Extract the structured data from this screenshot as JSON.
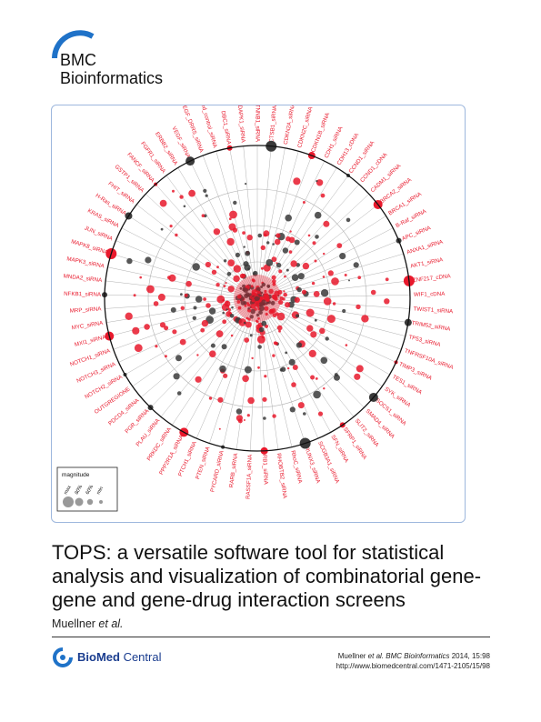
{
  "journal": {
    "line1": "BMC",
    "line2": "Bioinformatics",
    "arc_color": "#1f72c8"
  },
  "figure": {
    "labels_left": [
      "NOTCH1_siRNA",
      "MXI1_siRNA",
      "MYC_siRNA",
      "MRP_siRNA",
      "NFKB1_siRNA",
      "MNDA2_siRNA",
      "MAPK3_siRNA",
      "MAPK8_siRNA",
      "JUN_siRNA",
      "KRAS_siRNA",
      "H-Ras_siRNA",
      "FHIT_siRNA",
      "GSTP1_siRNA",
      "FANCF_siRNA",
      "FGFR1_siRNA",
      "ERBB2_siRNA",
      "VEGF_siRNA",
      "VEGF_DRRS_siRNA",
      "mixed_control_siRNA",
      "DBC1_siRNA",
      "DAPK1_siRNA"
    ],
    "labels_top": [
      "CTNNB1_siRNA",
      "CTSB1_siRNA",
      "CDKN2A_siRNA",
      "CDKN2C_siRNA",
      "CDKN1B_siRNA"
    ],
    "labels_right": [
      "CDH1_siRNA",
      "CDH13_cDNA",
      "CCND1_siRNA",
      "CCND1_cDNA",
      "CADM1_siRNA",
      "BRCA2_siRNA",
      "BRCA1_siRNA",
      "B-Raf_siRNA",
      "APC_siRNA",
      "ANXA1_siRNA",
      "AKT1_siRNA",
      "ZNF217_cDNA",
      "WIF1_cDNA",
      "TWIST1_siRNA",
      "TRIM52_siRNA",
      "TP53_siRNA",
      "TNFRSF10A_siRNA",
      "TIMP3_siRNA",
      "TES1_siRNA",
      "SYK_siRNA",
      "SOCS1_siRNA",
      "SMAD4_siRNA",
      "SLIT2_siRNA"
    ],
    "labels_bottom": [
      "SFRP1_siRNA",
      "SFN_siRNA",
      "SCGB3A1_siRNA",
      "RUNX3_siRNA",
      "RhoC_siRNA",
      "RHOBTB2_siRNA",
      "RB1_siRNA",
      "RASSF1A_siRNA",
      "RARB_siRNA",
      "PYCARD_siRNA",
      "PTEN_siRNA",
      "PTCH1_siRNA",
      "PPP2R1A_siRNA",
      "PRKDC_siRNA",
      "PLAU_siRNA",
      "PGR_siRNA",
      "PDCD4_siRNA",
      "OUTGREGIONE",
      "NOTCH3_siRNA",
      "NOTCH2_siRNA"
    ],
    "legend": {
      "title": "magnitude",
      "ticks": [
        "max",
        "80%",
        "60%",
        "min"
      ]
    },
    "colors": {
      "red": "#e8192c",
      "dark": "#3a3a3a",
      "grid": "#b0b0b0",
      "ring": "#111111"
    }
  },
  "article": {
    "title": "TOPS: a versatile software tool for statistical analysis and visualization of combinatorial gene-gene and gene-drug interaction screens",
    "author": "Muellner",
    "etal": "et al."
  },
  "publisher": {
    "name_bold": "BioMed",
    "name_rest": " Central",
    "swirl_color": "#1f72c8"
  },
  "citation": {
    "authors": "Muellner",
    "etal": "et al.",
    "journal": "BMC Bioinformatics",
    "ref": "2014, 15:98",
    "url": "http://www.biomedcentral.com/1471-2105/15/98"
  }
}
